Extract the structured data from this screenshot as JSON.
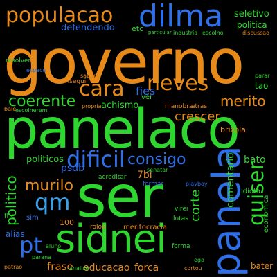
{
  "colors": {
    "background": "#000000",
    "orange": "#e88a1a",
    "green": "#2fd62f",
    "blue": "#2f6fe8",
    "light_blue": "#3aa0e8"
  },
  "words": [
    {
      "key": "governo",
      "text": "governo",
      "color": "orange"
    },
    {
      "key": "panelaco",
      "text": "panelaco",
      "color": "green"
    },
    {
      "key": "ser",
      "text": "ser",
      "color": "green"
    },
    {
      "key": "sidnei",
      "text": "sidnei",
      "color": "green"
    },
    {
      "key": "panela",
      "text": "panela",
      "color": "blue"
    },
    {
      "key": "dilma",
      "text": "dilma",
      "color": "blue"
    },
    {
      "key": "populacao",
      "text": "populacao",
      "color": "orange"
    },
    {
      "key": "cara",
      "text": "cara",
      "color": "orange"
    },
    {
      "key": "neves",
      "text": "neves",
      "color": "orange"
    },
    {
      "key": "coerente",
      "text": "coerente",
      "color": "green"
    },
    {
      "key": "merito",
      "text": "merito",
      "color": "orange"
    },
    {
      "key": "dificil",
      "text": "dificil",
      "color": "blue"
    },
    {
      "key": "consigo",
      "text": "consigo",
      "color": "blue"
    },
    {
      "key": "qm",
      "text": "qm",
      "color": "light_blue"
    },
    {
      "key": "pt",
      "text": "pt",
      "color": "blue"
    },
    {
      "key": "murilo",
      "text": "murilo",
      "color": "orange"
    },
    {
      "key": "quiser",
      "text": "quiser",
      "color": "green"
    },
    {
      "key": "politico",
      "text": "politico",
      "color": "green"
    },
    {
      "key": "corte",
      "text": "corte",
      "color": "green"
    },
    {
      "key": "crescer",
      "text": "crescer",
      "color": "orange"
    },
    {
      "key": "defendendo",
      "text": "defendendo",
      "color": "blue"
    },
    {
      "key": "seletivo",
      "text": "seletivo",
      "color": "green"
    },
    {
      "key": "politica",
      "text": "politica",
      "color": "green"
    },
    {
      "key": "bato",
      "text": "bato",
      "color": "green"
    },
    {
      "key": "comentario",
      "text": "comentario",
      "color": "green"
    },
    {
      "key": "psdb",
      "text": "psdb",
      "color": "blue"
    },
    {
      "key": "politicos",
      "text": "politicos",
      "color": "green"
    },
    {
      "key": "alias",
      "text": "alias",
      "color": "blue"
    },
    {
      "key": "frase",
      "text": "frase",
      "color": "orange"
    },
    {
      "key": "educacao",
      "text": "educacao",
      "color": "orange"
    },
    {
      "key": "forca",
      "text": "forca",
      "color": "orange"
    },
    {
      "key": "bater",
      "text": "bater",
      "color": "orange"
    },
    {
      "key": "achismo",
      "text": "achismo",
      "color": "green"
    },
    {
      "key": "fies",
      "text": "fies",
      "color": "blue"
    },
    {
      "key": "tao",
      "text": "tao",
      "color": "green"
    },
    {
      "key": "7bi",
      "text": "7bi",
      "color": "orange"
    },
    {
      "key": "economica",
      "text": "economica",
      "color": "green"
    },
    {
      "key": "etc",
      "text": "etc",
      "color": "green"
    },
    {
      "key": "fhc",
      "text": "fhc",
      "color": "green"
    },
    {
      "key": "sim",
      "text": "sim",
      "color": "blue"
    },
    {
      "key": "brizola",
      "text": "brizola",
      "color": "orange"
    },
    {
      "key": "idiota",
      "text": "idiota",
      "color": "green"
    },
    {
      "key": "meritocracia",
      "text": "meritocracia",
      "color": "orange"
    },
    {
      "key": "resolver",
      "text": "resolver",
      "color": "green"
    },
    {
      "key": "espaco",
      "text": "espaco",
      "color": "blue"
    },
    {
      "key": "conseguir",
      "text": "conseguir",
      "color": "orange"
    },
    {
      "key": "industria",
      "text": "industria",
      "color": "green"
    },
    {
      "key": "escolho",
      "text": "escolho",
      "color": "green"
    },
    {
      "key": "discussao",
      "text": "discussao",
      "color": "orange"
    },
    {
      "key": "manobra",
      "text": "manobra",
      "color": "orange"
    },
    {
      "key": "atras",
      "text": "atras",
      "color": "orange"
    },
    {
      "key": "propria",
      "text": "propria",
      "color": "orange"
    },
    {
      "key": "analise",
      "text": "analise",
      "color": "green"
    },
    {
      "key": "lutas",
      "text": "lutas",
      "color": "green"
    },
    {
      "key": "parana",
      "text": "parana",
      "color": "green"
    },
    {
      "key": "patrao",
      "text": "patrao",
      "color": "orange"
    },
    {
      "key": "rolou",
      "text": "rolou",
      "color": "orange"
    },
    {
      "key": "forma",
      "text": "forma",
      "color": "green"
    },
    {
      "key": "cortou",
      "text": "cortou",
      "color": "orange"
    },
    {
      "key": "100",
      "text": "100",
      "color": "orange"
    },
    {
      "key": "ego",
      "text": "ego",
      "color": "green"
    },
    {
      "key": "escolherem",
      "text": "escolherem",
      "color": "green"
    },
    {
      "key": "saber",
      "text": "saber",
      "color": "orange"
    },
    {
      "key": "acreditar",
      "text": "acreditar",
      "color": "green"
    },
    {
      "key": "formar",
      "text": "formar",
      "color": "blue"
    },
    {
      "key": "virei",
      "text": "virei",
      "color": "green"
    },
    {
      "key": "senatar",
      "text": "senatar",
      "color": "green"
    },
    {
      "key": "particular",
      "text": "particular",
      "color": "green"
    },
    {
      "key": "parar",
      "text": "parar",
      "color": "green"
    },
    {
      "key": "bale",
      "text": "bale",
      "color": "orange"
    },
    {
      "key": "ver",
      "text": "ver",
      "color": "green"
    },
    {
      "key": "playboy",
      "text": "playboy",
      "color": "blue"
    },
    {
      "key": "aluno",
      "text": "aluno",
      "color": "green"
    }
  ]
}
